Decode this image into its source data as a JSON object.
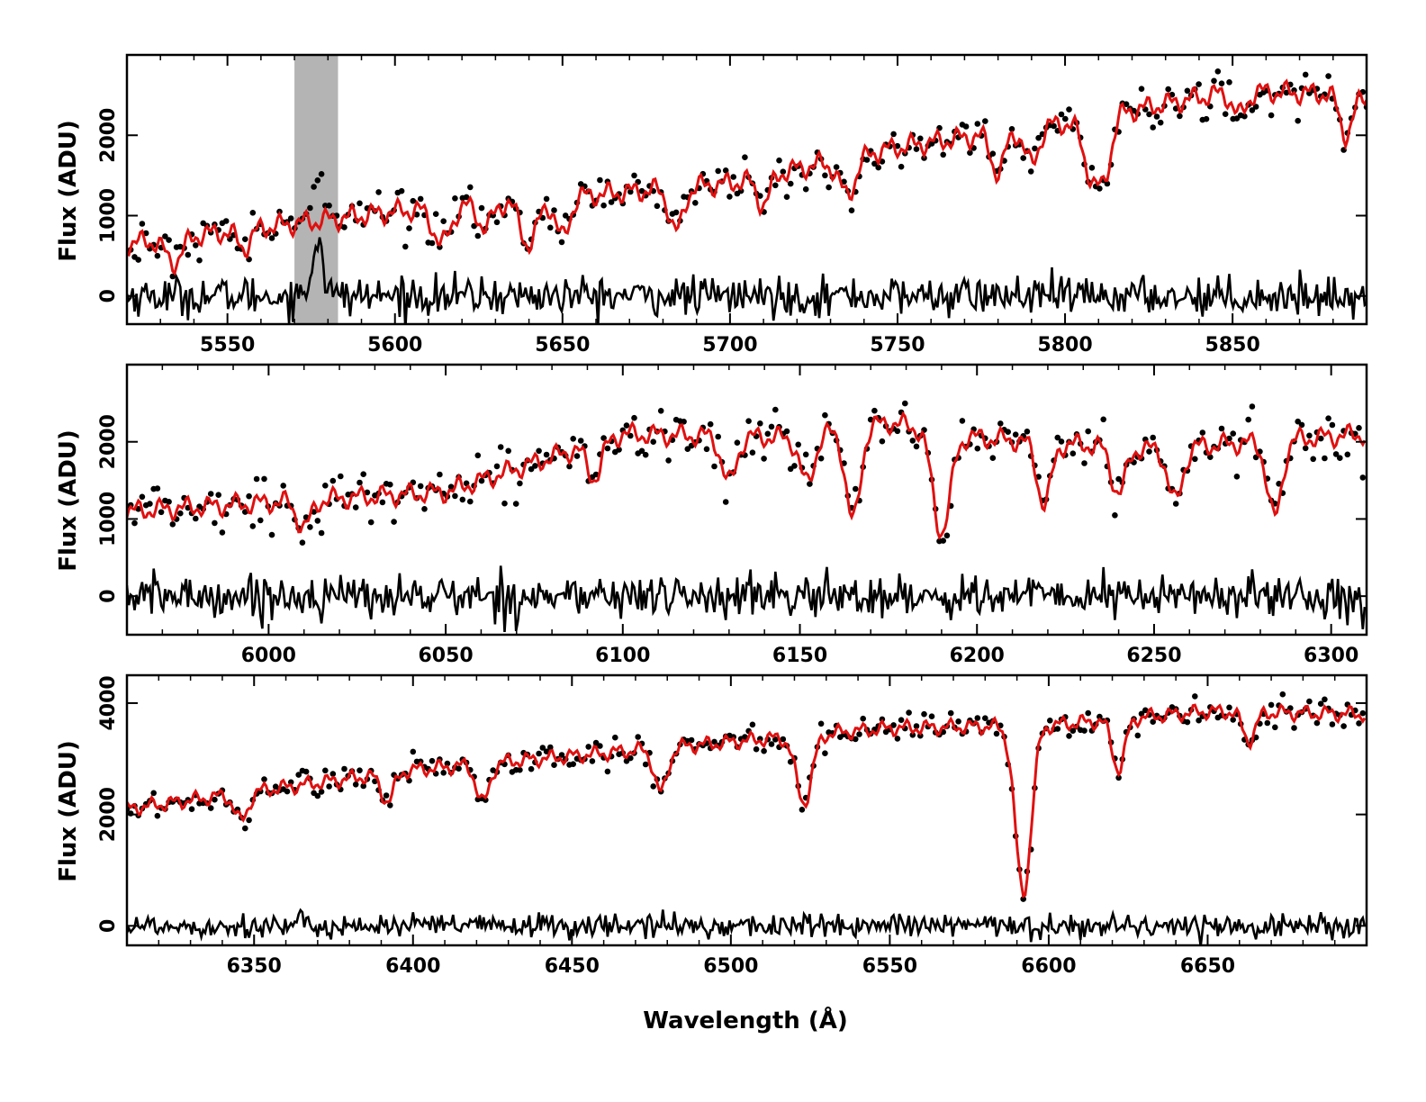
{
  "figure": {
    "xlabel": "Wavelength (Å)",
    "colors": {
      "model": "#e01010",
      "data": "#000000",
      "residual": "#000000",
      "mask": "#b4b4b4",
      "frame": "#000000"
    }
  },
  "chart_data": [
    {
      "type": "scatter",
      "name": "panel-1",
      "xlim": [
        5520,
        5890
      ],
      "ylim": [
        -350,
        3000
      ],
      "xticks": [
        5550,
        5600,
        5650,
        5700,
        5750,
        5800,
        5850
      ],
      "yticks": [
        0,
        1000,
        2000
      ],
      "ylabel": "Flux (ADU)",
      "xlabel": "",
      "masked_region": [
        5570,
        5583
      ],
      "continuum": [
        [
          5520,
          650
        ],
        [
          5600,
          1050
        ],
        [
          5700,
          1400
        ],
        [
          5750,
          1850
        ],
        [
          5800,
          2150
        ],
        [
          5850,
          2550
        ],
        [
          5890,
          2500
        ]
      ],
      "absorption_lines": [
        {
          "center": 5534,
          "depth": 300,
          "width": 2.5
        },
        {
          "center": 5555,
          "depth": 220,
          "width": 2
        },
        {
          "center": 5614,
          "depth": 450,
          "width": 2.5
        },
        {
          "center": 5627,
          "depth": 300,
          "width": 2
        },
        {
          "center": 5640,
          "depth": 550,
          "width": 2.5
        },
        {
          "center": 5650,
          "depth": 500,
          "width": 2
        },
        {
          "center": 5684,
          "depth": 550,
          "width": 2
        },
        {
          "center": 5710,
          "depth": 350,
          "width": 2
        },
        {
          "center": 5735,
          "depth": 450,
          "width": 2.5
        },
        {
          "center": 5780,
          "depth": 500,
          "width": 2
        },
        {
          "center": 5790,
          "depth": 450,
          "width": 2
        },
        {
          "center": 5808,
          "depth": 700,
          "width": 2.5
        },
        {
          "center": 5812,
          "depth": 600,
          "width": 2
        },
        {
          "center": 5852,
          "depth": 300,
          "width": 2
        },
        {
          "center": 5884,
          "depth": 500,
          "width": 2
        }
      ],
      "emission_features": [
        {
          "center": 5577,
          "height": 750,
          "width": 1.5
        }
      ],
      "residual_scatter": 120
    },
    {
      "type": "scatter",
      "name": "panel-2",
      "xlim": [
        5960,
        6310
      ],
      "ylim": [
        -500,
        3000
      ],
      "xticks": [
        6000,
        6050,
        6100,
        6150,
        6200,
        6250,
        6300
      ],
      "yticks": [
        0,
        1000,
        2000
      ],
      "ylabel": "Flux (ADU)",
      "xlabel": "",
      "continuum": [
        [
          5960,
          1100
        ],
        [
          6050,
          1350
        ],
        [
          6100,
          2100
        ],
        [
          6150,
          2050
        ],
        [
          6175,
          2250
        ],
        [
          6200,
          2050
        ],
        [
          6250,
          1900
        ],
        [
          6310,
          2100
        ]
      ],
      "absorption_lines": [
        {
          "center": 6010,
          "depth": 350,
          "width": 2
        },
        {
          "center": 6092,
          "depth": 450,
          "width": 2
        },
        {
          "center": 6130,
          "depth": 600,
          "width": 2
        },
        {
          "center": 6152,
          "depth": 600,
          "width": 2
        },
        {
          "center": 6165,
          "depth": 1200,
          "width": 2
        },
        {
          "center": 6190,
          "depth": 1300,
          "width": 2.5
        },
        {
          "center": 6219,
          "depth": 800,
          "width": 2
        },
        {
          "center": 6240,
          "depth": 600,
          "width": 2
        },
        {
          "center": 6256,
          "depth": 700,
          "width": 2
        },
        {
          "center": 6284,
          "depth": 1000,
          "width": 2
        }
      ],
      "residual_scatter": 140
    },
    {
      "type": "scatter",
      "name": "panel-3",
      "xlim": [
        6310,
        6700
      ],
      "ylim": [
        -350,
        4500
      ],
      "xticks": [
        6350,
        6400,
        6450,
        6500,
        6550,
        6600,
        6650
      ],
      "yticks": [
        0,
        2000,
        4000
      ],
      "ylabel": "Flux (ADU)",
      "xlabel": "Wavelength (Å)",
      "continuum": [
        [
          6310,
          2100
        ],
        [
          6400,
          2800
        ],
        [
          6500,
          3300
        ],
        [
          6550,
          3550
        ],
        [
          6600,
          3600
        ],
        [
          6650,
          3850
        ],
        [
          6700,
          3800
        ]
      ],
      "absorption_lines": [
        {
          "center": 6346,
          "depth": 500,
          "width": 2
        },
        {
          "center": 6392,
          "depth": 500,
          "width": 2
        },
        {
          "center": 6422,
          "depth": 700,
          "width": 2
        },
        {
          "center": 6478,
          "depth": 800,
          "width": 2
        },
        {
          "center": 6523,
          "depth": 1200,
          "width": 2.5
        },
        {
          "center": 6592,
          "depth": 3000,
          "width": 2.5
        },
        {
          "center": 6622,
          "depth": 900,
          "width": 2
        },
        {
          "center": 6663,
          "depth": 500,
          "width": 2
        }
      ],
      "residual_scatter": 110
    }
  ]
}
